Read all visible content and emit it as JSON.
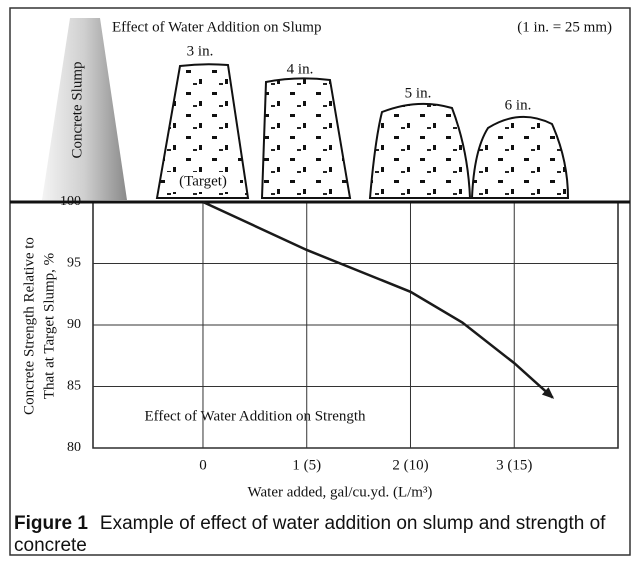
{
  "chart_data": {
    "type": "line",
    "slump_title": "Effect of Water Addition on Slump",
    "slump_note": "(1 in. = 25 mm)",
    "slump_axis_label": "Concrete Slump",
    "slump_labels": [
      "3 in.",
      "4 in.",
      "5 in.",
      "6 in."
    ],
    "target_label": "(Target)",
    "annotation": "Effect of Water Addition on Strength",
    "y_label_lines": [
      "Concrete Strength Relative to",
      "That at Target Slump, %"
    ],
    "x_label": "Water added, gal/cu.yd. (L/m³)",
    "xlim": [
      -1.06,
      4
    ],
    "xticks": [
      {
        "value": 0,
        "label": "0"
      },
      {
        "value": 1,
        "label": "1 (5)"
      },
      {
        "value": 2,
        "label": "2 (10)"
      },
      {
        "value": 3,
        "label": "3 (15)"
      }
    ],
    "ylim": [
      80,
      100
    ],
    "yticks": [
      80,
      85,
      90,
      95,
      100
    ],
    "grid": true,
    "series": [
      {
        "color": "#1a1a1a",
        "x": [
          0,
          1,
          2,
          2.5,
          3,
          3.37
        ],
        "values": [
          100,
          96.1,
          92.7,
          90.2,
          86.9,
          84.1
        ]
      }
    ],
    "caption_label": "Figure 1",
    "caption": "Example of effect of water addition on slump and strength of concrete"
  }
}
